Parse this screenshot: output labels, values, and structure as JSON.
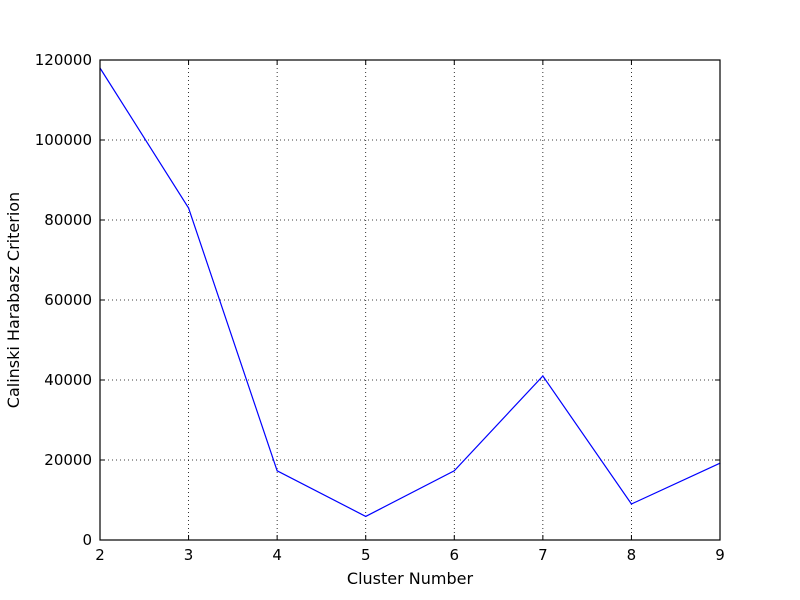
{
  "chart_data": {
    "type": "line",
    "title": "",
    "xlabel": "Cluster Number",
    "ylabel": "Calinski Harabasz Criterion",
    "x": [
      2,
      3,
      4,
      5,
      6,
      7,
      8,
      9
    ],
    "series": [
      {
        "values": [
          118000,
          83000,
          17300,
          5900,
          17300,
          41000,
          9000,
          19200
        ],
        "color": "#0000ff"
      }
    ],
    "xlim": [
      2,
      9
    ],
    "ylim": [
      0,
      120000
    ],
    "xticks": [
      2,
      3,
      4,
      5,
      6,
      7,
      8,
      9
    ],
    "yticks": [
      0,
      20000,
      40000,
      60000,
      80000,
      100000,
      120000
    ],
    "grid": true
  }
}
